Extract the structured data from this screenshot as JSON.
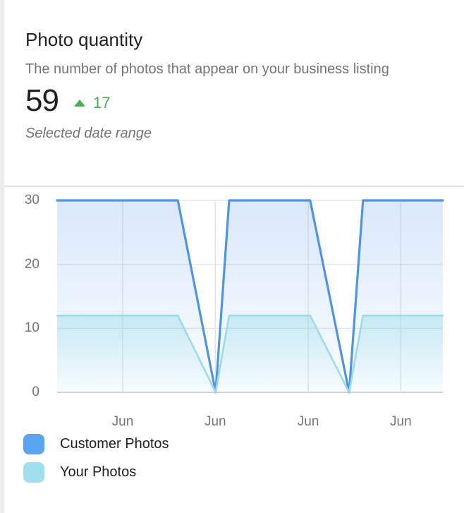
{
  "card": {
    "title": "Photo quantity",
    "subtitle": "The number of photos that appear on your business listing",
    "metric": {
      "value": "59",
      "delta": "17",
      "delta_direction": "up",
      "delta_icon": "trend-up-icon",
      "delta_color": "#4cae52",
      "caption": "Selected date range"
    }
  },
  "chart_data": {
    "type": "area",
    "title": "Photo quantity",
    "xlabel": "",
    "ylabel": "",
    "ylim": [
      0,
      30
    ],
    "grid": true,
    "legend_position": "bottom",
    "yticks": [
      30,
      20,
      10,
      0
    ],
    "xticks": [
      {
        "label": "Jun",
        "pos": 17.0
      },
      {
        "label": "Jun",
        "pos": 41.0
      },
      {
        "label": "Jun",
        "pos": 65.1
      },
      {
        "label": "Jun",
        "pos": 89.1
      }
    ],
    "series": [
      {
        "name": "Customer Photos",
        "color": "#4d94ec",
        "legend_color": "#58a4f0",
        "fill_top": "rgba(77,148,236,0.21)",
        "fill_bottom": "rgba(77,148,236,0.02)",
        "width": 3.2,
        "points": [
          [
            0,
            30
          ],
          [
            31.3,
            30
          ],
          [
            41.1,
            0
          ],
          [
            44.6,
            30
          ],
          [
            65.6,
            30
          ],
          [
            75.7,
            0
          ],
          [
            79.3,
            30
          ],
          [
            100,
            30
          ]
        ]
      },
      {
        "name": "Your Photos",
        "color": "#9bdce8",
        "legend_color": "#9fdfee",
        "fill_top": "rgba(130,213,227,0.35)",
        "fill_bottom": "rgba(130,213,227,0.03)",
        "width": 2.6,
        "points": [
          [
            0,
            12
          ],
          [
            31.3,
            12
          ],
          [
            41.1,
            0
          ],
          [
            44.6,
            12
          ],
          [
            65.6,
            12
          ],
          [
            75.7,
            0
          ],
          [
            79.3,
            12
          ],
          [
            100,
            12
          ]
        ]
      }
    ]
  }
}
